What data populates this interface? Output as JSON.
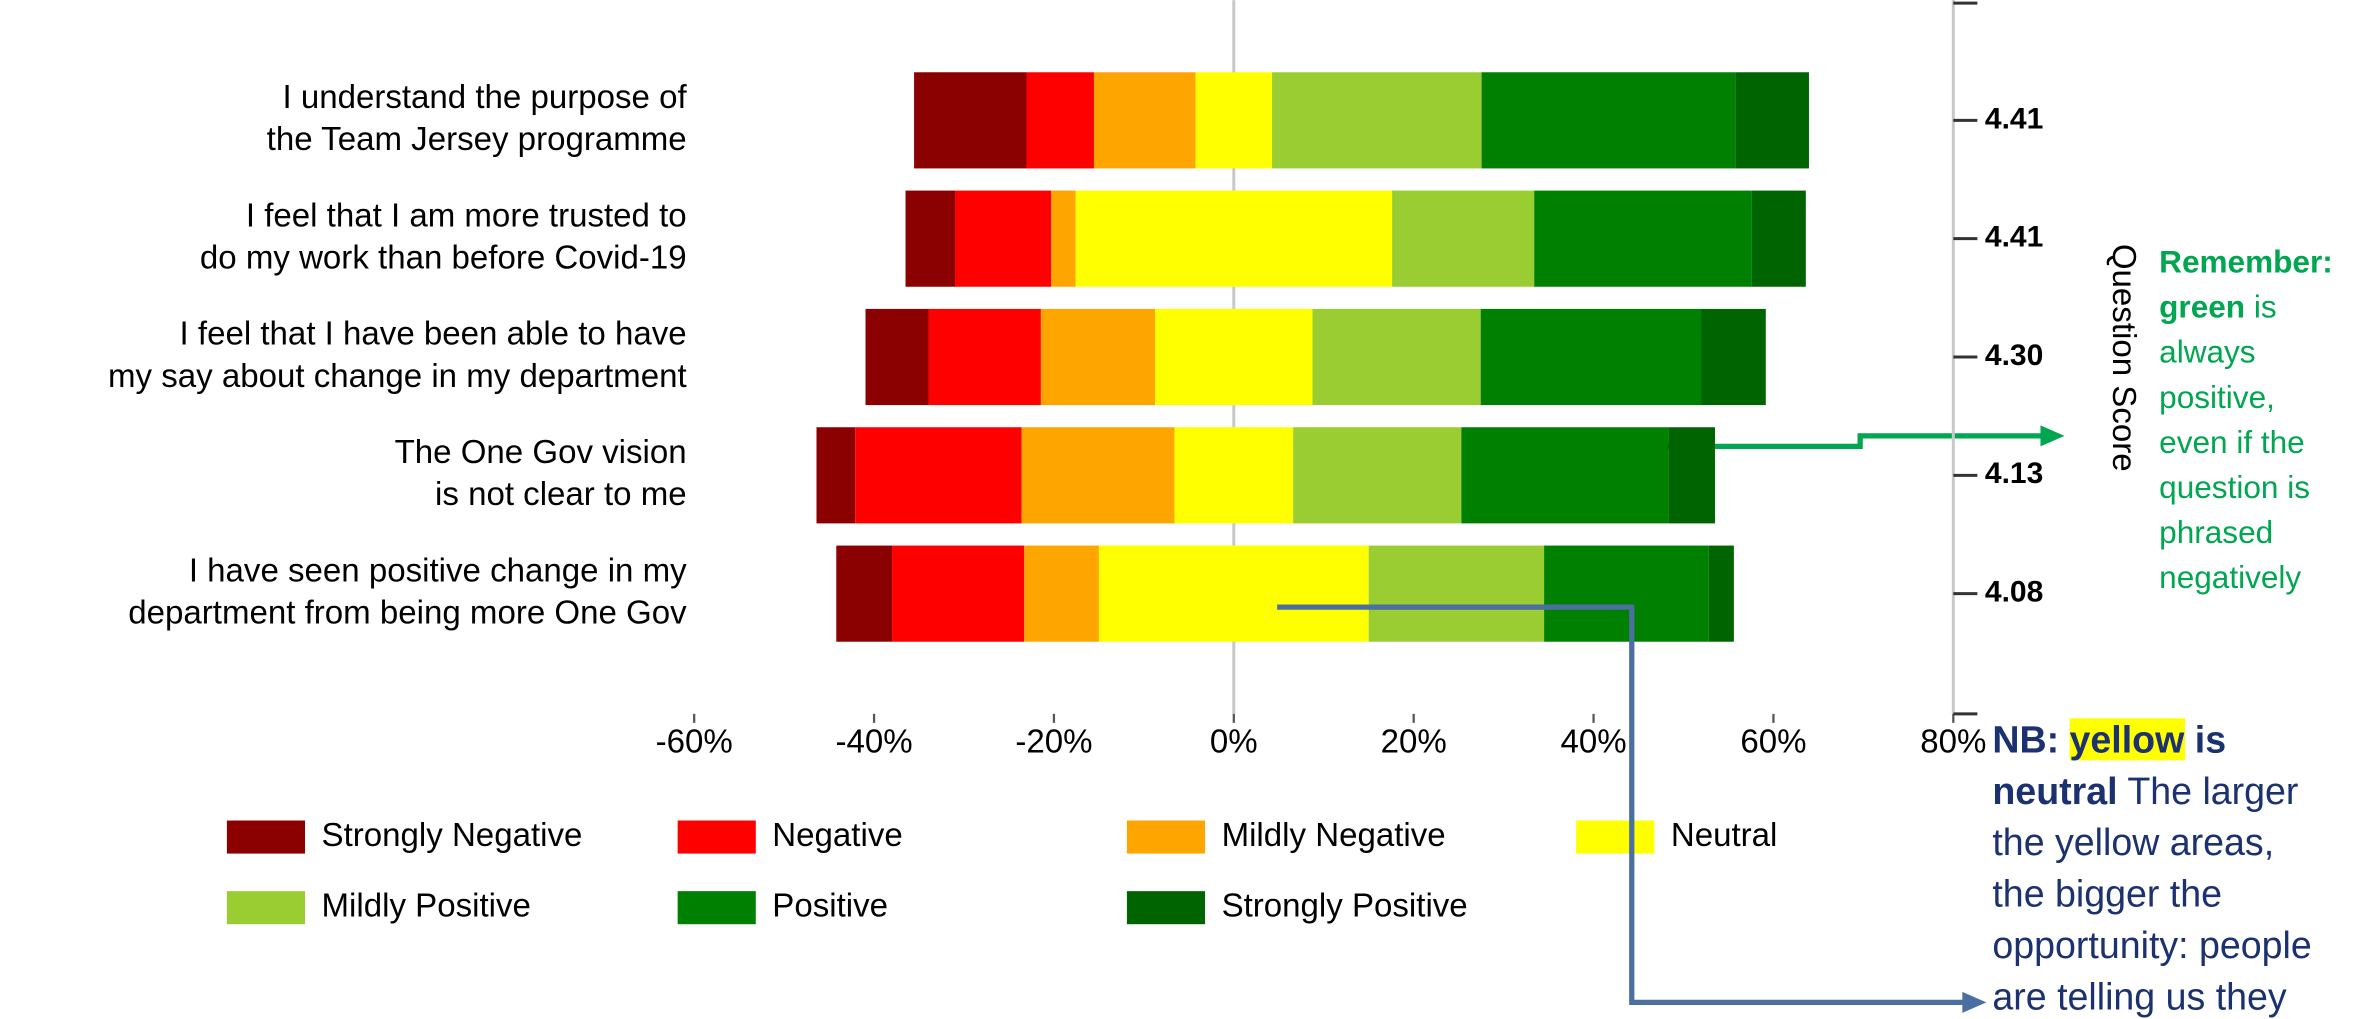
{
  "chart_data": {
    "type": "diverging_bar",
    "categories": [
      [
        "I understand the purpose of",
        "the Team Jersey programme"
      ],
      [
        "I feel that I am more trusted to",
        "do my work than before Covid-19"
      ],
      [
        "I feel that I have been able to have",
        "my say about change in my department"
      ],
      [
        "The One Gov vision",
        "is not clear to me"
      ],
      [
        "I have seen positive change in my",
        "department from being more One Gov"
      ]
    ],
    "series": [
      {
        "name": "Strongly Negative",
        "color": "#8b0000",
        "values": [
          12.5,
          5.5,
          7,
          4.3,
          6.2
        ]
      },
      {
        "name": "Negative",
        "color": "#ff0000",
        "values": [
          7.5,
          10.7,
          12.5,
          18.5,
          14.7
        ]
      },
      {
        "name": "Mildly Negative",
        "color": "#ffa500",
        "values": [
          11.3,
          2.7,
          12.7,
          17,
          8.3
        ]
      },
      {
        "name": "Neutral",
        "color": "#ffff00",
        "values": [
          8.5,
          35.2,
          17.5,
          13.2,
          30
        ]
      },
      {
        "name": "Mildly Positive",
        "color": "#9acd32",
        "values": [
          23.3,
          15.8,
          18.7,
          18.7,
          19.5
        ]
      },
      {
        "name": "Positive",
        "color": "#008000",
        "values": [
          28.2,
          24.2,
          24.5,
          23,
          18.3
        ]
      },
      {
        "name": "Strongly Positive",
        "color": "#006400",
        "values": [
          8.2,
          6,
          7.2,
          5.2,
          2.8
        ]
      }
    ],
    "neutral_series": 3,
    "xlim": [
      -60,
      80
    ],
    "xticks": [
      {
        "value": -60,
        "label": "-60%"
      },
      {
        "value": -40,
        "label": "-40%"
      },
      {
        "value": -20,
        "label": "-20%"
      },
      {
        "value": 0,
        "label": "0%"
      },
      {
        "value": 20,
        "label": "20%"
      },
      {
        "value": 40,
        "label": "40%"
      },
      {
        "value": 60,
        "label": "60%"
      },
      {
        "value": 80,
        "label": "80%"
      }
    ],
    "y2label": "Question Score",
    "y2ticks": [
      4.41,
      4.41,
      {
        "value": 4.3,
        "label": "4.30"
      },
      4.13,
      4.08
    ],
    "annotations": [
      {
        "color": "#00a650",
        "lines": [
          [
            {
              "text": "Remember:",
              "bold": true
            }
          ],
          [
            {
              "text": "green",
              "bold": true
            },
            {
              "text": " is"
            }
          ],
          [
            {
              "text": "always"
            }
          ],
          [
            {
              "text": "positive,"
            }
          ],
          [
            {
              "text": "even if the"
            }
          ],
          [
            {
              "text": "question is"
            }
          ],
          [
            {
              "text": "phrased"
            }
          ],
          [
            {
              "text": "negatively"
            }
          ]
        ]
      },
      {
        "color": "#1b3170",
        "lines": [
          [
            {
              "text": "NB: ",
              "bold": true
            },
            {
              "text": "yellow",
              "bold": true,
              "highlight": "#ffff00"
            },
            {
              "text": " is",
              "bold": true
            }
          ],
          [
            {
              "text": "neutral",
              "bold": true
            },
            {
              "text": " The larger"
            }
          ],
          [
            {
              "text": "the yellow areas,"
            }
          ],
          [
            {
              "text": "the bigger the"
            }
          ],
          [
            {
              "text": "opportunity: people"
            }
          ],
          [
            {
              "text": "are telling us they"
            }
          ]
        ]
      }
    ]
  }
}
